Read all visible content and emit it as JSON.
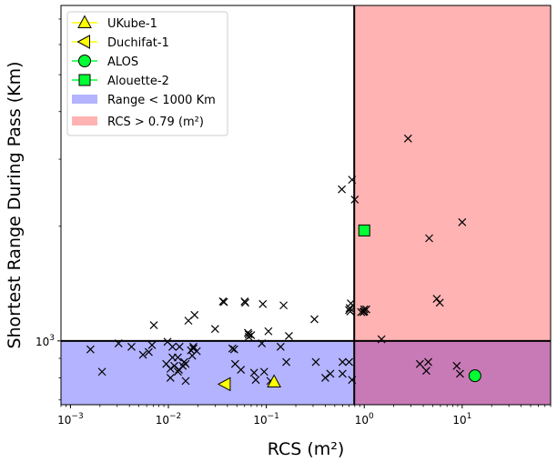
{
  "chart_data": {
    "type": "scatter",
    "xlabel": "RCS (m²)",
    "ylabel": "Shortest Range During Pass (Km)",
    "xscale": "log",
    "yscale": "log",
    "xlim": [
      0.0008,
      80
    ],
    "ylim": [
      680,
      7600
    ],
    "x_ticks": [
      {
        "value": 0.001,
        "base": "10",
        "exp": "−3"
      },
      {
        "value": 0.01,
        "base": "10",
        "exp": "−2"
      },
      {
        "value": 0.1,
        "base": "10",
        "exp": "−1"
      },
      {
        "value": 1,
        "base": "10",
        "exp": "0"
      },
      {
        "value": 10,
        "base": "10",
        "exp": "1"
      }
    ],
    "y_ticks": [
      {
        "value": 1000,
        "base": "10",
        "exp": "3"
      }
    ],
    "thresholds": {
      "range_km": 1000,
      "rcs_m2": 0.79
    },
    "regions": [
      {
        "name": "Range < 1000 Km",
        "color": "#b3b3ff"
      },
      {
        "name": "RCS > 0.79 (m²)",
        "color": "#ffb3b3"
      }
    ],
    "overlap_color": "#c87ab6",
    "legend_position": "upper-left",
    "highlighted": [
      {
        "name": "UKube-1",
        "marker": "triangle-up",
        "color": "#ffff00",
        "x": 0.12,
        "y": 780
      },
      {
        "name": "Duchifat-1",
        "marker": "triangle-left",
        "color": "#ffff00",
        "x": 0.038,
        "y": 770
      },
      {
        "name": "ALOS",
        "marker": "circle",
        "color": "#00ff33",
        "x": 13.5,
        "y": 810
      },
      {
        "name": "Alouette-2",
        "marker": "square",
        "color": "#00ff33",
        "x": 1.0,
        "y": 1950
      }
    ],
    "others": {
      "marker": "x",
      "points": [
        [
          0.0016,
          950
        ],
        [
          0.0021,
          830
        ],
        [
          0.0031,
          985
        ],
        [
          0.0042,
          965
        ],
        [
          0.0055,
          920
        ],
        [
          0.0063,
          935
        ],
        [
          0.0068,
          975
        ],
        [
          0.0071,
          1100
        ],
        [
          0.0098,
          995
        ],
        [
          0.011,
          965
        ],
        [
          0.011,
          905
        ],
        [
          0.0115,
          860
        ],
        [
          0.0125,
          830
        ],
        [
          0.0128,
          840
        ],
        [
          0.013,
          965
        ],
        [
          0.014,
          860
        ],
        [
          0.0145,
          880
        ],
        [
          0.015,
          785
        ],
        [
          0.015,
          870
        ],
        [
          0.016,
          1130
        ],
        [
          0.017,
          945
        ],
        [
          0.018,
          955
        ],
        [
          0.0185,
          1170
        ],
        [
          0.018,
          965
        ],
        [
          0.0195,
          940
        ],
        [
          0.0095,
          870
        ],
        [
          0.0105,
          800
        ],
        [
          0.0105,
          845
        ],
        [
          0.0125,
          905
        ],
        [
          0.0175,
          915
        ],
        [
          0.03,
          1075
        ],
        [
          0.036,
          1270
        ],
        [
          0.037,
          1265
        ],
        [
          0.045,
          955
        ],
        [
          0.047,
          950
        ],
        [
          0.048,
          870
        ],
        [
          0.055,
          840
        ],
        [
          0.06,
          1270
        ],
        [
          0.061,
          1260
        ],
        [
          0.065,
          1050
        ],
        [
          0.066,
          1025
        ],
        [
          0.07,
          1035
        ],
        [
          0.066,
          1040
        ],
        [
          0.075,
          825
        ],
        [
          0.078,
          790
        ],
        [
          0.09,
          985
        ],
        [
          0.092,
          1250
        ],
        [
          0.095,
          830
        ],
        [
          0.105,
          1060
        ],
        [
          0.11,
          785
        ],
        [
          0.14,
          965
        ],
        [
          0.15,
          1240
        ],
        [
          0.16,
          880
        ],
        [
          0.17,
          1030
        ],
        [
          0.31,
          1140
        ],
        [
          0.32,
          880
        ],
        [
          0.4,
          800
        ],
        [
          0.45,
          820
        ],
        [
          0.59,
          2500
        ],
        [
          0.6,
          880
        ],
        [
          0.6,
          820
        ],
        [
          0.7,
          1205
        ],
        [
          0.7,
          880
        ],
        [
          0.71,
          1220
        ],
        [
          0.72,
          1195
        ],
        [
          0.73,
          1255
        ],
        [
          0.75,
          2650
        ],
        [
          0.75,
          790
        ],
        [
          0.8,
          2350
        ],
        [
          0.93,
          1190
        ],
        [
          1.05,
          1210
        ],
        [
          1.5,
          1010
        ],
        [
          2.8,
          3400
        ],
        [
          3.7,
          870
        ],
        [
          4.3,
          835
        ],
        [
          4.5,
          880
        ],
        [
          4.6,
          1860
        ],
        [
          5.5,
          1290
        ],
        [
          5.9,
          1260
        ],
        [
          8.8,
          860
        ],
        [
          9.5,
          820
        ],
        [
          10.0,
          2050
        ],
        [
          1.0,
          1210
        ],
        [
          0.98,
          1190
        ],
        [
          1.0,
          1195
        ]
      ]
    }
  }
}
